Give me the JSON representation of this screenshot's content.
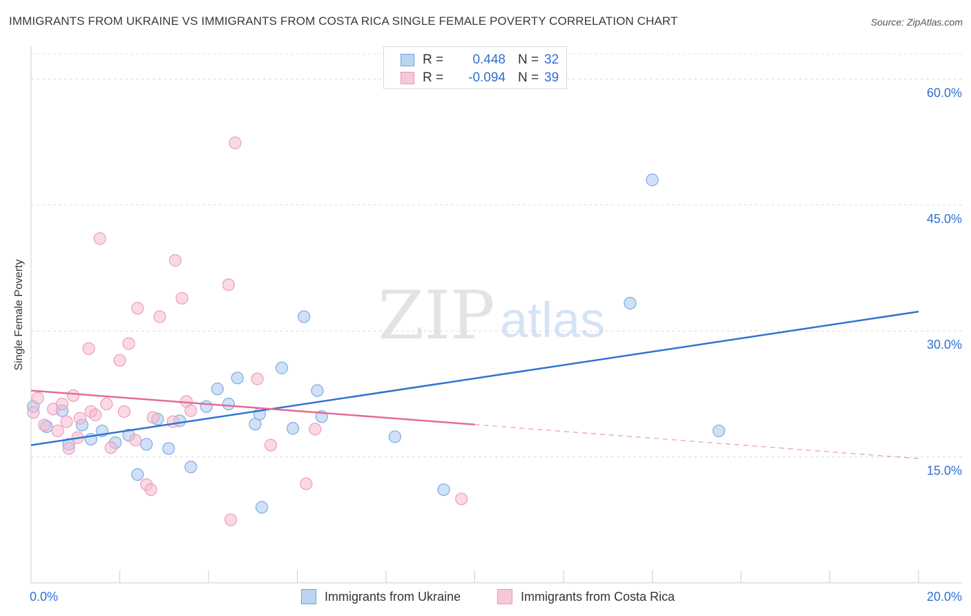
{
  "title": "IMMIGRANTS FROM UKRAINE VS IMMIGRANTS FROM COSTA RICA SINGLE FEMALE POVERTY CORRELATION CHART",
  "source": "Source: ZipAtlas.com",
  "watermark": {
    "zip": "ZIP",
    "atlas": "atlas"
  },
  "legend": {
    "r_label": "R =",
    "n_label": "N =",
    "items": [
      {
        "r": "0.448",
        "n": "32"
      },
      {
        "r": "-0.094",
        "n": "39"
      }
    ]
  },
  "colors": {
    "ukraine": "#2e74d0",
    "ukraine_fill": "#a9c8ee",
    "costa_rica": "#e36a96",
    "costa_rica_fill": "#f5b9cf",
    "axis_text": "#2f6fd0"
  },
  "chart_data": {
    "type": "scatter",
    "title": "IMMIGRANTS FROM UKRAINE VS IMMIGRANTS FROM COSTA RICA SINGLE FEMALE POVERTY CORRELATION CHART",
    "xlabel": "",
    "ylabel": "Single Female Poverty",
    "xlim": [
      0,
      20
    ],
    "ylim": [
      0,
      63
    ],
    "x_tick_labels": [
      "0.0%",
      "20.0%"
    ],
    "y_ticks": [
      15,
      30,
      45,
      60
    ],
    "y_tick_labels": [
      "15.0%",
      "30.0%",
      "45.0%",
      "60.0%"
    ],
    "grid": true,
    "series": [
      {
        "name": "Immigrants from Ukraine",
        "r": 0.448,
        "n": 32,
        "points": [
          [
            0.05,
            21.0
          ],
          [
            0.35,
            18.6
          ],
          [
            0.7,
            20.5
          ],
          [
            0.85,
            16.5
          ],
          [
            1.15,
            18.8
          ],
          [
            1.35,
            17.1
          ],
          [
            1.6,
            18.1
          ],
          [
            1.9,
            16.7
          ],
          [
            2.2,
            17.6
          ],
          [
            2.4,
            12.9
          ],
          [
            2.6,
            16.5
          ],
          [
            2.85,
            19.5
          ],
          [
            3.1,
            16.0
          ],
          [
            3.35,
            19.3
          ],
          [
            3.6,
            13.8
          ],
          [
            3.95,
            21.0
          ],
          [
            4.2,
            23.1
          ],
          [
            4.45,
            21.3
          ],
          [
            4.65,
            24.4
          ],
          [
            5.05,
            18.9
          ],
          [
            5.15,
            20.1
          ],
          [
            5.65,
            25.6
          ],
          [
            5.9,
            18.4
          ],
          [
            6.15,
            31.7
          ],
          [
            6.45,
            22.9
          ],
          [
            6.55,
            19.8
          ],
          [
            5.2,
            9.0
          ],
          [
            8.2,
            17.4
          ],
          [
            9.3,
            11.1
          ],
          [
            13.5,
            33.3
          ],
          [
            14.0,
            48.0
          ],
          [
            15.5,
            18.1
          ]
        ],
        "trend": {
          "x": [
            0,
            20
          ],
          "y": [
            16.4,
            32.3
          ],
          "dashed_from": null
        }
      },
      {
        "name": "Immigrants from Costa Rica",
        "r": -0.094,
        "n": 39,
        "points": [
          [
            0.05,
            20.3
          ],
          [
            0.15,
            22.0
          ],
          [
            0.3,
            18.8
          ],
          [
            0.5,
            20.7
          ],
          [
            0.6,
            18.1
          ],
          [
            0.7,
            21.3
          ],
          [
            0.8,
            19.2
          ],
          [
            0.85,
            16.0
          ],
          [
            0.95,
            22.3
          ],
          [
            1.05,
            17.3
          ],
          [
            1.1,
            19.6
          ],
          [
            1.3,
            27.9
          ],
          [
            1.35,
            20.4
          ],
          [
            1.45,
            20.0
          ],
          [
            1.55,
            41.0
          ],
          [
            1.7,
            21.3
          ],
          [
            1.8,
            16.1
          ],
          [
            2.0,
            26.5
          ],
          [
            2.1,
            20.4
          ],
          [
            2.2,
            28.5
          ],
          [
            2.35,
            17.0
          ],
          [
            2.4,
            32.7
          ],
          [
            2.6,
            11.7
          ],
          [
            2.7,
            11.1
          ],
          [
            2.75,
            19.7
          ],
          [
            2.9,
            31.7
          ],
          [
            3.2,
            19.2
          ],
          [
            3.25,
            38.4
          ],
          [
            3.4,
            33.9
          ],
          [
            3.5,
            21.6
          ],
          [
            3.6,
            20.5
          ],
          [
            4.5,
            7.5
          ],
          [
            4.6,
            52.4
          ],
          [
            5.1,
            24.3
          ],
          [
            5.4,
            16.4
          ],
          [
            6.2,
            11.8
          ],
          [
            6.4,
            18.3
          ],
          [
            9.7,
            10.0
          ],
          [
            4.45,
            35.5
          ]
        ],
        "trend": {
          "x": [
            0,
            20
          ],
          "y": [
            22.9,
            14.8
          ],
          "dashed_from": 10
        }
      }
    ]
  },
  "bottom_legend": [
    "Immigrants from Ukraine",
    "Immigrants from Costa Rica"
  ]
}
